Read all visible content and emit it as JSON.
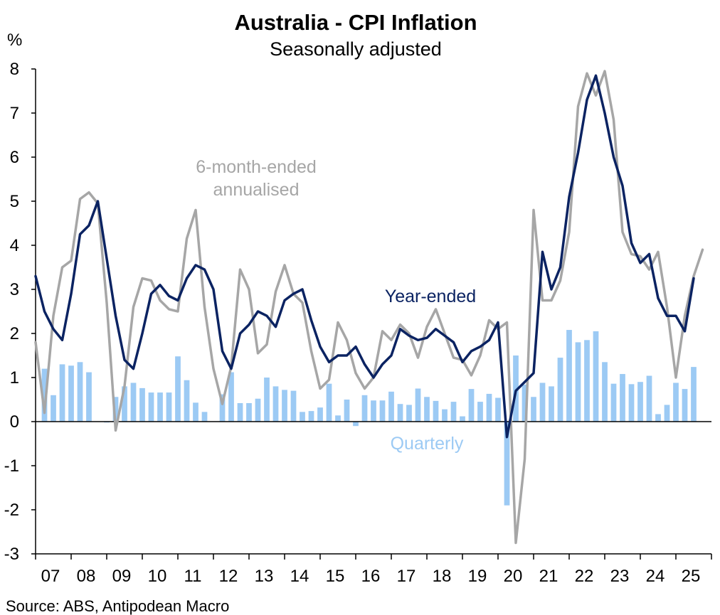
{
  "chart_data": {
    "type": "line",
    "title": "Australia - CPI Inflation",
    "subtitle": "Seasonally adjusted",
    "ylabel": "%",
    "ylim": [
      -3,
      8
    ],
    "yticks": [
      "8",
      "7",
      "6",
      "5",
      "4",
      "3",
      "2",
      "1",
      "0",
      "-1",
      "-2",
      "-3"
    ],
    "xticks": [
      "07",
      "08",
      "09",
      "10",
      "11",
      "12",
      "13",
      "14",
      "15",
      "16",
      "17",
      "18",
      "19",
      "20",
      "21",
      "22",
      "23",
      "24",
      "25"
    ],
    "x_start": 2007.0,
    "x_step": 0.25,
    "source": "Source: ABS, Antipodean Macro",
    "annotations": {
      "six_month": [
        "6-month-ended",
        "annualised"
      ],
      "year_ended": "Year-ended",
      "quarterly": "Quarterly"
    },
    "colors": {
      "year_ended": "#0b2362",
      "six_month": "#a6a6a6",
      "quarterly": "#9ccaf4",
      "axis": "#000000"
    },
    "series": [
      {
        "name": "Year-ended",
        "kind": "line",
        "values": [
          3.3,
          2.5,
          2.1,
          1.85,
          2.9,
          4.25,
          4.45,
          5.0,
          3.7,
          2.4,
          1.4,
          1.2,
          2.0,
          2.9,
          3.1,
          2.85,
          2.75,
          3.25,
          3.55,
          3.45,
          3.0,
          1.6,
          1.2,
          2.0,
          2.2,
          2.5,
          2.4,
          2.15,
          2.75,
          2.9,
          3.0,
          2.3,
          1.7,
          1.35,
          1.5,
          1.5,
          1.7,
          1.3,
          1.0,
          1.3,
          1.5,
          2.1,
          1.95,
          1.85,
          1.9,
          2.1,
          1.95,
          1.8,
          1.35,
          1.6,
          1.7,
          1.85,
          2.25,
          -0.35,
          0.7,
          0.9,
          1.1,
          3.85,
          3.0,
          3.5,
          5.1,
          6.1,
          7.3,
          7.85,
          7.0,
          6.0,
          5.35,
          4.05,
          3.6,
          3.8,
          2.8,
          2.4,
          2.4,
          2.05,
          3.25
        ]
      },
      {
        "name": "6-month-ended annualised",
        "kind": "line",
        "values": [
          1.8,
          0.2,
          2.4,
          3.5,
          3.65,
          5.05,
          5.2,
          4.95,
          2.7,
          -0.2,
          0.8,
          2.6,
          3.25,
          3.2,
          2.75,
          2.55,
          2.5,
          4.15,
          4.8,
          2.6,
          1.2,
          0.4,
          1.25,
          3.45,
          3.0,
          1.55,
          1.75,
          2.95,
          3.55,
          2.9,
          2.7,
          1.6,
          0.75,
          0.95,
          2.25,
          1.85,
          1.1,
          0.75,
          1.0,
          2.05,
          1.85,
          2.2,
          2.0,
          1.45,
          2.15,
          2.55,
          2.0,
          1.45,
          1.4,
          1.05,
          1.5,
          2.3,
          2.1,
          2.25,
          -2.75,
          -0.85,
          4.8,
          2.75,
          2.75,
          3.2,
          4.3,
          7.15,
          7.9,
          7.4,
          7.95,
          6.85,
          4.3,
          3.8,
          3.75,
          3.45,
          3.85,
          2.6,
          1.0,
          2.4,
          3.3,
          3.9
        ]
      },
      {
        "name": "Quarterly",
        "kind": "bar",
        "values": [
          1.2,
          0.6,
          1.3,
          1.27,
          1.35,
          1.12,
          0.0,
          -0.02,
          0.56,
          0.8,
          0.88,
          0.76,
          0.66,
          0.66,
          0.66,
          1.48,
          0.94,
          0.43,
          0.22,
          0.0,
          0.62,
          1.12,
          0.42,
          0.42,
          0.52,
          1.0,
          0.8,
          0.72,
          0.7,
          0.22,
          0.24,
          0.32,
          0.86,
          0.14,
          0.5,
          -0.1,
          0.6,
          0.48,
          0.48,
          0.68,
          0.4,
          0.38,
          0.75,
          0.56,
          0.47,
          0.28,
          0.45,
          0.12,
          0.74,
          0.45,
          0.63,
          0.54,
          -1.9,
          1.5,
          0.84,
          0.56,
          0.88,
          0.8,
          1.45,
          2.08,
          1.8,
          1.85,
          2.05,
          1.35,
          0.86,
          1.08,
          0.85,
          0.9,
          1.04,
          0.17,
          0.38,
          0.88,
          0.74,
          1.24
        ]
      }
    ]
  }
}
